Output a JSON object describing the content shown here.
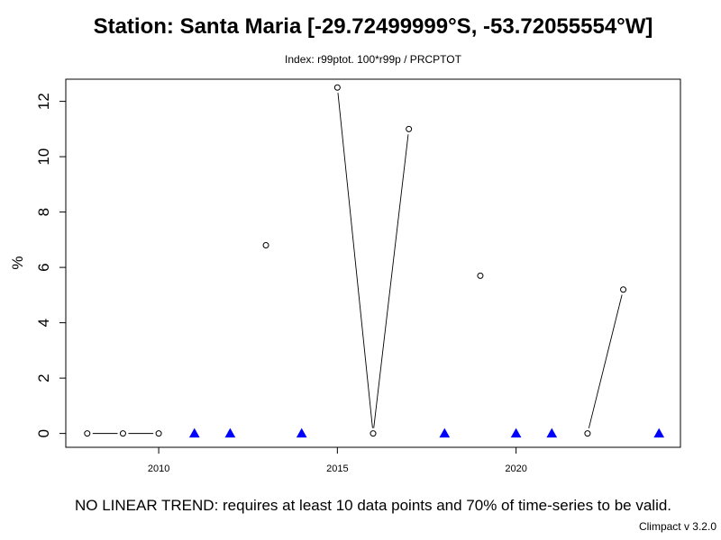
{
  "chart_data": {
    "type": "line",
    "title": "Station: Santa Maria [-29.72499999°S, -53.72055554°W]",
    "subtitle": "Index: r99ptot. 100*r99p / PRCPTOT",
    "xlabel": "",
    "ylabel": "%",
    "xlim": [
      2007.4,
      2024.6
    ],
    "ylim": [
      -0.5,
      12.8
    ],
    "x_ticks": [
      2010,
      2015,
      2020
    ],
    "y_ticks": [
      0,
      2,
      4,
      6,
      8,
      10,
      12
    ],
    "grid": false,
    "valid_series": {
      "x": [
        2008,
        2009,
        2010,
        2013,
        2015,
        2016,
        2017,
        2019,
        2022,
        2023
      ],
      "y": [
        0,
        0,
        0,
        6.8,
        12.5,
        0,
        11.0,
        5.7,
        0,
        5.2
      ],
      "segments": [
        [
          2008,
          2009
        ],
        [
          2009,
          2010
        ],
        [
          2015,
          2016
        ],
        [
          2016,
          2017
        ],
        [
          2022,
          2023
        ]
      ]
    },
    "missing_years": [
      2011,
      2012,
      2014,
      2018,
      2020,
      2021,
      2024
    ],
    "missing_marker_color": "#0000ff",
    "trend_note": "NO LINEAR TREND: requires at least 10 data points and 70% of time-series to be valid.",
    "credit": "Climpact v 3.2.0"
  }
}
